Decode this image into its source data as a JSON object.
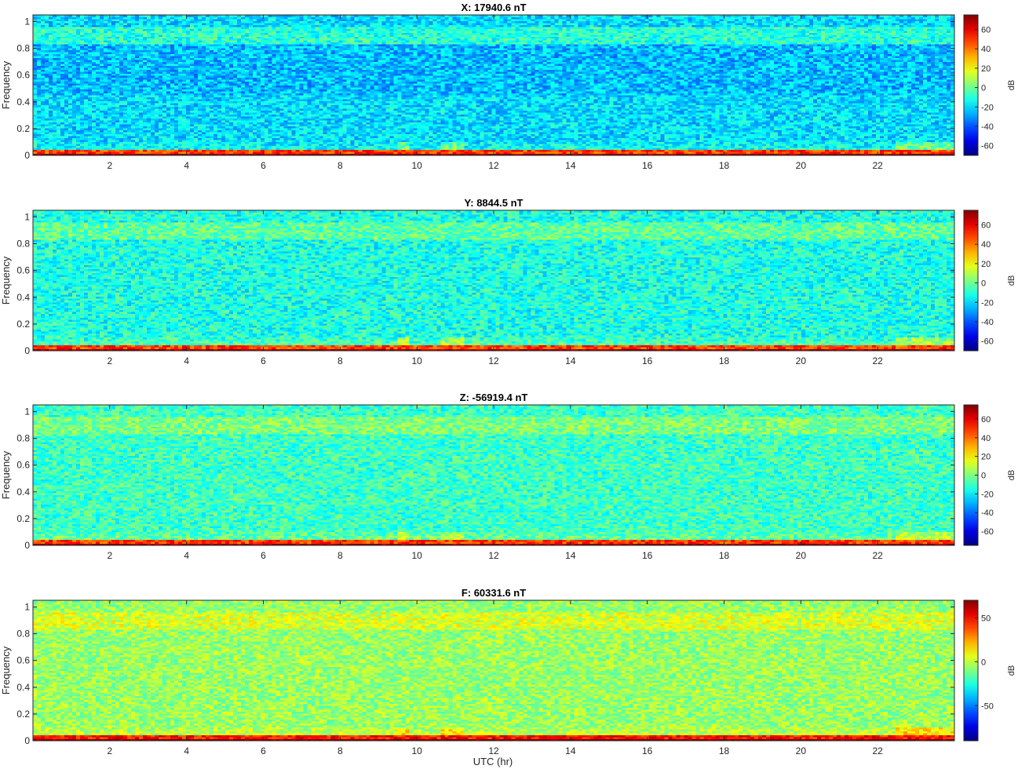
{
  "figure": {
    "xlabel": "UTC (hr)"
  },
  "colormap": "jet",
  "chart_data": [
    {
      "type": "heatmap",
      "title": "X: 17940.6 nT",
      "xlabel": "",
      "ylabel": "Frequency",
      "xlim": [
        0,
        24
      ],
      "ylim": [
        0,
        1.05
      ],
      "x_ticks": [
        2,
        4,
        6,
        8,
        10,
        12,
        14,
        16,
        18,
        20,
        22
      ],
      "y_ticks": [
        0,
        0.2,
        0.4,
        0.6,
        0.8,
        1
      ],
      "colorbar": {
        "label": "dB",
        "range": [
          -70,
          75
        ],
        "ticks": [
          -60,
          -40,
          -20,
          0,
          20,
          40,
          60
        ]
      }
    },
    {
      "type": "heatmap",
      "title": "Y: 8844.5 nT",
      "xlabel": "",
      "ylabel": "Frequency",
      "xlim": [
        0,
        24
      ],
      "ylim": [
        0,
        1.05
      ],
      "x_ticks": [
        2,
        4,
        6,
        8,
        10,
        12,
        14,
        16,
        18,
        20,
        22
      ],
      "y_ticks": [
        0,
        0.2,
        0.4,
        0.6,
        0.8,
        1
      ],
      "colorbar": {
        "label": "dB",
        "range": [
          -70,
          75
        ],
        "ticks": [
          -60,
          -40,
          -20,
          0,
          20,
          40,
          60
        ]
      }
    },
    {
      "type": "heatmap",
      "title": "Z: -56919.4 nT",
      "xlabel": "",
      "ylabel": "Frequency",
      "xlim": [
        0,
        24
      ],
      "ylim": [
        0,
        1.05
      ],
      "x_ticks": [
        2,
        4,
        6,
        8,
        10,
        12,
        14,
        16,
        18,
        20,
        22
      ],
      "y_ticks": [
        0,
        0.2,
        0.4,
        0.6,
        0.8,
        1
      ],
      "colorbar": {
        "label": "dB",
        "range": [
          -75,
          75
        ],
        "ticks": [
          -60,
          -40,
          -20,
          0,
          20,
          40,
          60
        ]
      }
    },
    {
      "type": "heatmap",
      "title": "F: 60331.6 nT",
      "xlabel": "UTC (hr)",
      "ylabel": "Frequency",
      "xlim": [
        0,
        24
      ],
      "ylim": [
        0,
        1.05
      ],
      "x_ticks": [
        2,
        4,
        6,
        8,
        10,
        12,
        14,
        16,
        18,
        20,
        22
      ],
      "y_ticks": [
        0,
        0.2,
        0.4,
        0.6,
        0.8,
        1
      ],
      "colorbar": {
        "label": "dB",
        "range": [
          -90,
          70
        ],
        "ticks": [
          -50,
          0,
          50
        ]
      }
    }
  ]
}
